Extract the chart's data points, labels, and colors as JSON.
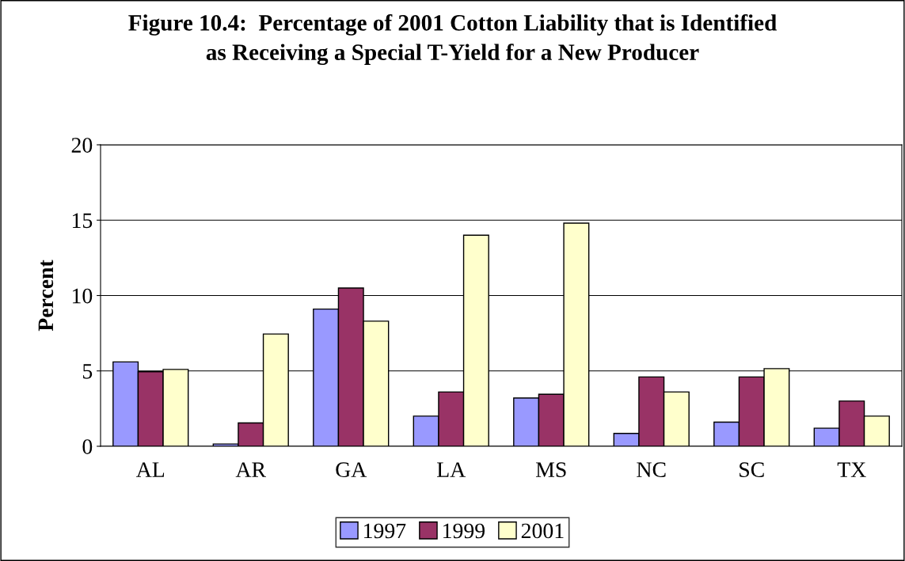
{
  "chart_data": {
    "type": "bar",
    "title": "Figure 10.4:  Percentage of 2001 Cotton Liability that is Identified\nas Receiving a Special T-Yield for a New Producer",
    "ylabel": "Percent",
    "categories": [
      "AL",
      "AR",
      "GA",
      "LA",
      "MS",
      "NC",
      "SC",
      "TX"
    ],
    "series": [
      {
        "name": "1997",
        "color": "#9999ff",
        "values": [
          5.6,
          0.15,
          9.1,
          2.0,
          3.2,
          0.85,
          1.6,
          1.2
        ]
      },
      {
        "name": "1999",
        "color": "#993366",
        "values": [
          4.95,
          1.55,
          10.5,
          3.6,
          3.45,
          4.6,
          4.6,
          3.0
        ]
      },
      {
        "name": "2001",
        "color": "#ffffcc",
        "values": [
          5.1,
          7.45,
          8.3,
          14.0,
          14.8,
          3.6,
          5.15,
          2.0
        ]
      }
    ],
    "ylim": [
      0,
      20
    ],
    "yticks": [
      0,
      5,
      10,
      15,
      20
    ],
    "grid": "y",
    "legend": "bottom"
  }
}
